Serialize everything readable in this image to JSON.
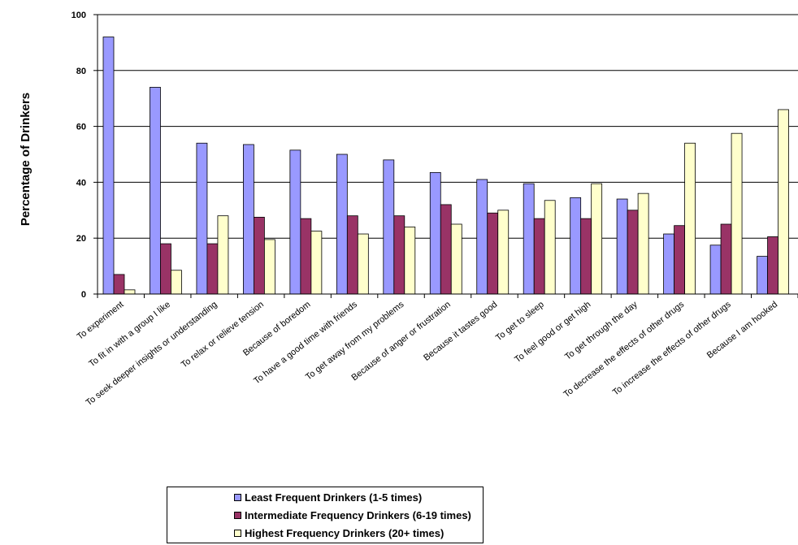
{
  "chart_data": {
    "type": "bar",
    "ylabel": "Percentage of Drinkers",
    "ylim": [
      0,
      100
    ],
    "yticks": [
      "0",
      "20",
      "40",
      "60",
      "80",
      "100"
    ],
    "grid": true,
    "legend_position": "bottom",
    "categories": [
      "To experiment",
      "To fit in with a group I like",
      "To seek deeper insights or understanding",
      "To relax or relieve tension",
      "Because of boredom",
      "To have a good time with friends",
      "To get away from my problems",
      "Because of anger or frustration",
      "Because it tastes good",
      "To get to sleep",
      "To feel good or get high",
      "To get through the day",
      "To decrease the effects of other drugs",
      "To increase the effects of other drugs",
      "Because I am hooked"
    ],
    "series": [
      {
        "name": "Least Frequent Drinkers (1-5 times)",
        "color": "#9999ff",
        "values": [
          92,
          74,
          54,
          53.5,
          51.5,
          50,
          48,
          43.5,
          41,
          39.5,
          34.5,
          34,
          21.5,
          17.5,
          13.5
        ]
      },
      {
        "name": "Intermediate Frequency Drinkers (6-19 times)",
        "color": "#993366",
        "values": [
          7,
          18,
          18,
          27.5,
          27,
          28,
          28,
          32,
          29,
          27,
          27,
          30,
          24.5,
          25,
          20.5
        ]
      },
      {
        "name": "Highest Frequency Drinkers (20+ times)",
        "color": "#ffffcc",
        "values": [
          1.5,
          8.5,
          28,
          19.5,
          22.5,
          21.5,
          24,
          25,
          30,
          33.5,
          39.5,
          36,
          54,
          57.5,
          66
        ]
      }
    ]
  }
}
